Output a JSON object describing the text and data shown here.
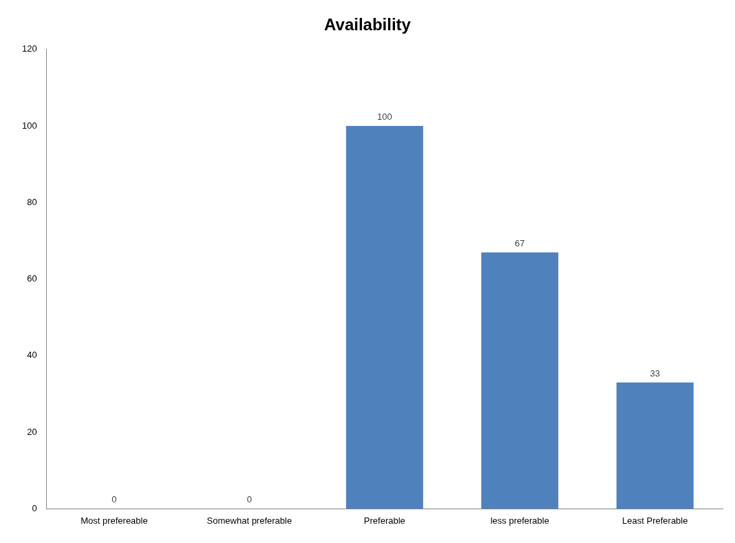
{
  "chart_data": {
    "type": "bar",
    "title": "Availability",
    "categories": [
      "Most prefereable",
      "Somewhat preferable",
      "Preferable",
      "less preferable",
      "Least Preferable"
    ],
    "values": [
      0,
      0,
      100,
      67,
      33
    ],
    "color": "#4f81bd",
    "ylim": [
      0,
      120
    ],
    "yticks": [
      0,
      20,
      40,
      60,
      80,
      100,
      120
    ],
    "grid": false,
    "legend": false,
    "data_labels": true
  }
}
